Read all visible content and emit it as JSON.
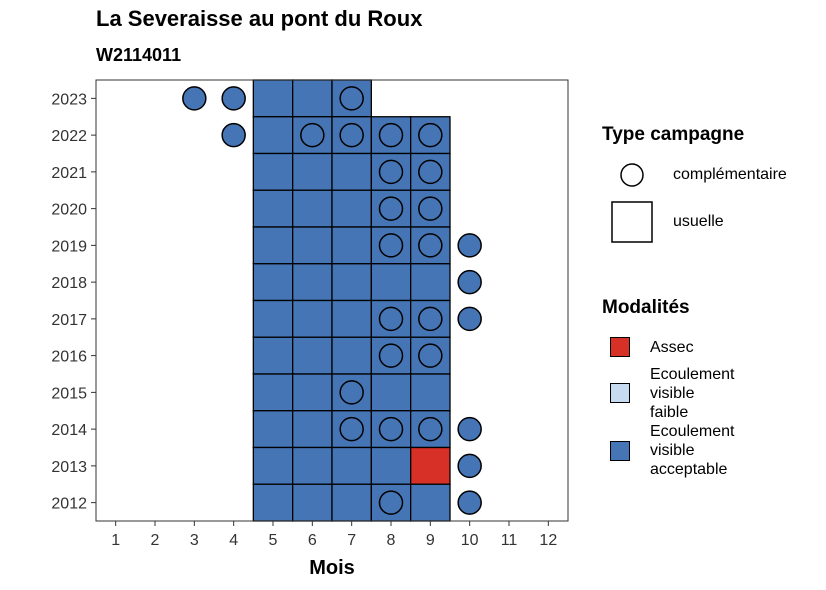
{
  "chart_data": {
    "type": "heatmap",
    "title": "La Severaisse au pont du Roux",
    "subtitle": "W2114011",
    "xlabel": "Mois",
    "ylabel": "",
    "x_ticks": [
      "1",
      "2",
      "3",
      "4",
      "5",
      "6",
      "7",
      "8",
      "9",
      "10",
      "11",
      "12"
    ],
    "y_ticks": [
      "2012",
      "2013",
      "2014",
      "2015",
      "2016",
      "2017",
      "2018",
      "2019",
      "2020",
      "2021",
      "2022",
      "2023"
    ],
    "xlim": [
      0.5,
      12.5
    ],
    "ylim": [
      2011.5,
      2023.5
    ],
    "grid": false,
    "legend_placement": "right",
    "colors": {
      "Assec": "#d73027",
      "Ecoulement visible faible": "#c6dbef",
      "Ecoulement visible acceptable": "#4575b4"
    },
    "legend_type": {
      "title": "Type campagne",
      "entries": [
        {
          "label": "complémentaire",
          "shape": "circle"
        },
        {
          "label": "usuelle",
          "shape": "square"
        }
      ]
    },
    "legend_modalites": {
      "title": "Modalités",
      "entries": [
        {
          "label": "Assec",
          "color": "#d73027",
          "lines": [
            "Assec"
          ]
        },
        {
          "label": "Ecoulement visible faible",
          "color": "#c6dbef",
          "lines": [
            "Ecoulement",
            "visible",
            "faible"
          ]
        },
        {
          "label": "Ecoulement visible acceptable",
          "color": "#4575b4",
          "lines": [
            "Ecoulement",
            "visible",
            "acceptable"
          ]
        }
      ]
    },
    "usuelle_points": [
      {
        "year": 2023,
        "months": [
          5,
          6,
          7
        ],
        "modalite": "Ecoulement visible acceptable"
      },
      {
        "year": 2022,
        "months": [
          5,
          6,
          7,
          8,
          9
        ],
        "modalite": "Ecoulement visible acceptable"
      },
      {
        "year": 2021,
        "months": [
          5,
          6,
          7,
          8,
          9
        ],
        "modalite": "Ecoulement visible acceptable"
      },
      {
        "year": 2020,
        "months": [
          5,
          6,
          7,
          8,
          9
        ],
        "modalite": "Ecoulement visible acceptable"
      },
      {
        "year": 2019,
        "months": [
          5,
          6,
          7,
          8,
          9
        ],
        "modalite": "Ecoulement visible acceptable"
      },
      {
        "year": 2018,
        "months": [
          5,
          6,
          7,
          8,
          9
        ],
        "modalite": "Ecoulement visible acceptable"
      },
      {
        "year": 2017,
        "months": [
          5,
          6,
          7,
          8,
          9
        ],
        "modalite": "Ecoulement visible acceptable"
      },
      {
        "year": 2016,
        "months": [
          5,
          6,
          7,
          8,
          9
        ],
        "modalite": "Ecoulement visible acceptable"
      },
      {
        "year": 2015,
        "months": [
          5,
          6,
          7,
          8,
          9
        ],
        "modalite": "Ecoulement visible acceptable"
      },
      {
        "year": 2014,
        "months": [
          5,
          6,
          7,
          8,
          9
        ],
        "modalite": "Ecoulement visible acceptable"
      },
      {
        "year": 2013,
        "months": [
          5,
          6,
          7,
          8
        ],
        "modalite": "Ecoulement visible acceptable"
      },
      {
        "year": 2013,
        "months": [
          9
        ],
        "modalite": "Assec"
      },
      {
        "year": 2012,
        "months": [
          5,
          6,
          7,
          8,
          9
        ],
        "modalite": "Ecoulement visible acceptable"
      }
    ],
    "complementaire_points": [
      {
        "year": 2023,
        "months": [
          3,
          4,
          7
        ],
        "modalite": "Ecoulement visible acceptable"
      },
      {
        "year": 2022,
        "months": [
          4,
          6,
          7,
          8,
          9
        ],
        "modalite": "Ecoulement visible acceptable"
      },
      {
        "year": 2021,
        "months": [
          8,
          9
        ],
        "modalite": "Ecoulement visible acceptable"
      },
      {
        "year": 2020,
        "months": [
          8,
          9
        ],
        "modalite": "Ecoulement visible acceptable"
      },
      {
        "year": 2019,
        "months": [
          8,
          9,
          10
        ],
        "modalite": "Ecoulement visible acceptable"
      },
      {
        "year": 2018,
        "months": [
          10
        ],
        "modalite": "Ecoulement visible acceptable"
      },
      {
        "year": 2017,
        "months": [
          8,
          9,
          10
        ],
        "modalite": "Ecoulement visible acceptable"
      },
      {
        "year": 2016,
        "months": [
          8,
          9
        ],
        "modalite": "Ecoulement visible acceptable"
      },
      {
        "year": 2015,
        "months": [
          7
        ],
        "modalite": "Ecoulement visible acceptable"
      },
      {
        "year": 2014,
        "months": [
          7,
          8,
          9,
          10
        ],
        "modalite": "Ecoulement visible acceptable"
      },
      {
        "year": 2013,
        "months": [
          10
        ],
        "modalite": "Ecoulement visible acceptable"
      },
      {
        "year": 2012,
        "months": [
          8,
          10
        ],
        "modalite": "Ecoulement visible acceptable"
      }
    ]
  }
}
